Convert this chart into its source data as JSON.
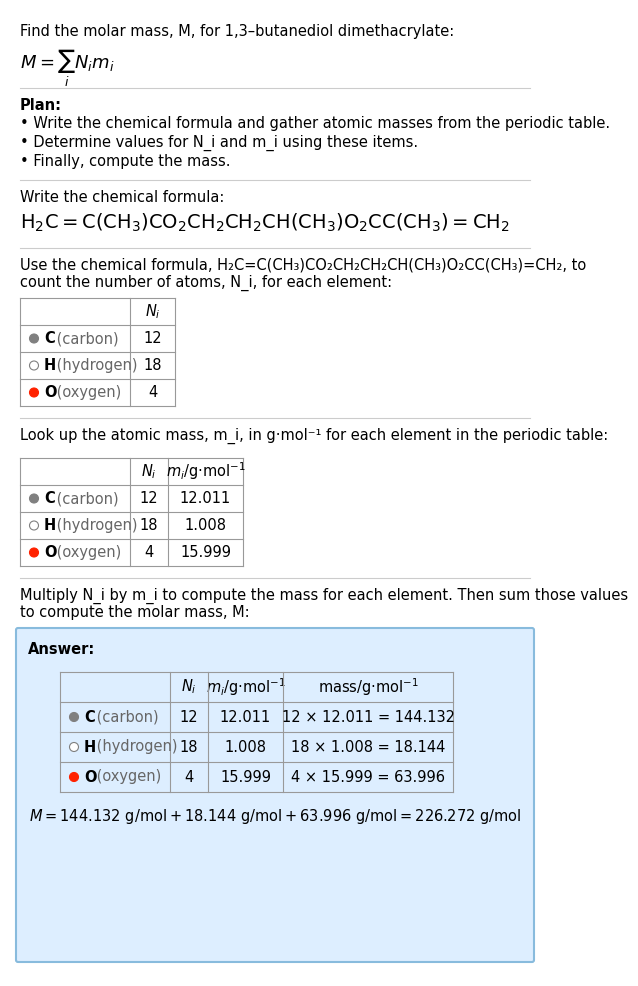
{
  "title_line": "Find the molar mass, M, for 1,3–butanediol dimethacrylate:",
  "formula_eq": "M = ∑ N_i m_i",
  "plan_header": "Plan:",
  "plan_bullets": [
    "• Write the chemical formula and gather atomic masses from the periodic table.",
    "• Determine values for N_i and m_i using these items.",
    "• Finally, compute the mass."
  ],
  "section2_header": "Write the chemical formula:",
  "chemical_formula": "H₂C=C(CH₃)CO₂CH₂CH₂CH(CH₃)O₂CC(CH₃)=CH₂",
  "section3_header_pre": "Use the chemical formula, H₂C=C(CH₃)CO₂CH₂CH₂CH(CH₃)O₂CC(CH₃)=CH₂, to",
  "section3_header_post": "count the number of atoms, N_i, for each element:",
  "table1_elements": [
    "C (carbon)",
    "H (hydrogen)",
    "O (oxygen)"
  ],
  "table1_Ni": [
    12,
    18,
    4
  ],
  "element_colors": [
    "#808080",
    "#ffffff",
    "#ff2200"
  ],
  "element_border": [
    "#808080",
    "#808080",
    "#ff2200"
  ],
  "section4_header": "Look up the atomic mass, m_i, in g·mol⁻¹ for each element in the periodic table:",
  "table2_elements": [
    "C (carbon)",
    "H (hydrogen)",
    "O (oxygen)"
  ],
  "table2_Ni": [
    12,
    18,
    4
  ],
  "table2_mi": [
    "12.011",
    "1.008",
    "15.999"
  ],
  "section5_header_line1": "Multiply N_i by m_i to compute the mass for each element. Then sum those values",
  "section5_header_line2": "to compute the molar mass, M:",
  "answer_label": "Answer:",
  "table3_elements": [
    "C (carbon)",
    "H (hydrogen)",
    "O (oxygen)"
  ],
  "table3_Ni": [
    12,
    18,
    4
  ],
  "table3_mi": [
    "12.011",
    "1.008",
    "15.999"
  ],
  "table3_mass": [
    "12 × 12.011 = 144.132",
    "18 × 1.008 = 18.144",
    "4 × 15.999 = 63.996"
  ],
  "final_eq": "M = 144.132 g/mol + 18.144 g/mol + 63.996 g/mol = 226.272 g/mol",
  "bg_color": "#ffffff",
  "answer_box_color": "#ddeeff",
  "text_color": "#000000",
  "separator_color": "#cccccc"
}
